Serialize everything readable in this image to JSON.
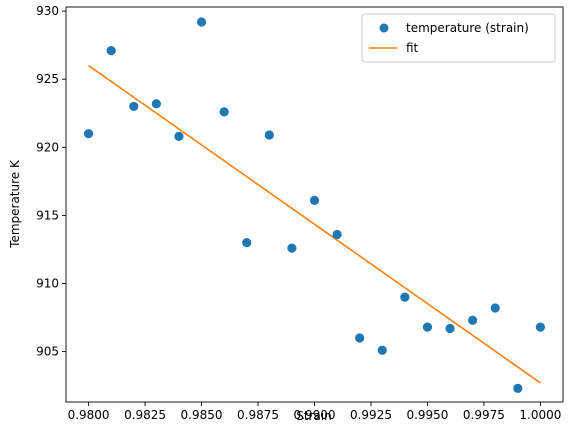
{
  "chart_data": {
    "type": "scatter",
    "xlabel": "Strain",
    "ylabel": "Temperature K",
    "xlim": [
      0.979,
      1.001
    ],
    "ylim": [
      901.3,
      930.3
    ],
    "xticks": [
      0.98,
      0.9825,
      0.985,
      0.9875,
      0.99,
      0.9925,
      0.995,
      0.9975,
      1.0
    ],
    "xtick_labels": [
      "0.9800",
      "0.9825",
      "0.9850",
      "0.9875",
      "0.9900",
      "0.9925",
      "0.9950",
      "0.9975",
      "1.0000"
    ],
    "yticks": [
      905,
      910,
      915,
      920,
      925,
      930
    ],
    "ytick_labels": [
      "905",
      "910",
      "915",
      "920",
      "925",
      "930"
    ],
    "grid": false,
    "legend_position": "top-right",
    "series": [
      {
        "name": "temperature (strain)",
        "kind": "scatter",
        "color": "#1f77b4",
        "x": [
          0.98,
          0.981,
          0.982,
          0.983,
          0.984,
          0.985,
          0.986,
          0.987,
          0.988,
          0.989,
          0.99,
          0.991,
          0.992,
          0.993,
          0.994,
          0.995,
          0.996,
          0.997,
          0.998,
          0.999,
          1.0
        ],
        "y": [
          921.0,
          927.1,
          923.0,
          923.2,
          920.8,
          929.2,
          922.6,
          913.0,
          920.9,
          912.6,
          916.1,
          913.6,
          906.0,
          905.1,
          909.0,
          906.8,
          906.7,
          907.3,
          908.2,
          902.3,
          906.8
        ]
      },
      {
        "name": "fit",
        "kind": "line",
        "color": "#ff7f0e",
        "x": [
          0.98,
          1.0
        ],
        "y": [
          926.0,
          902.7
        ]
      }
    ]
  }
}
